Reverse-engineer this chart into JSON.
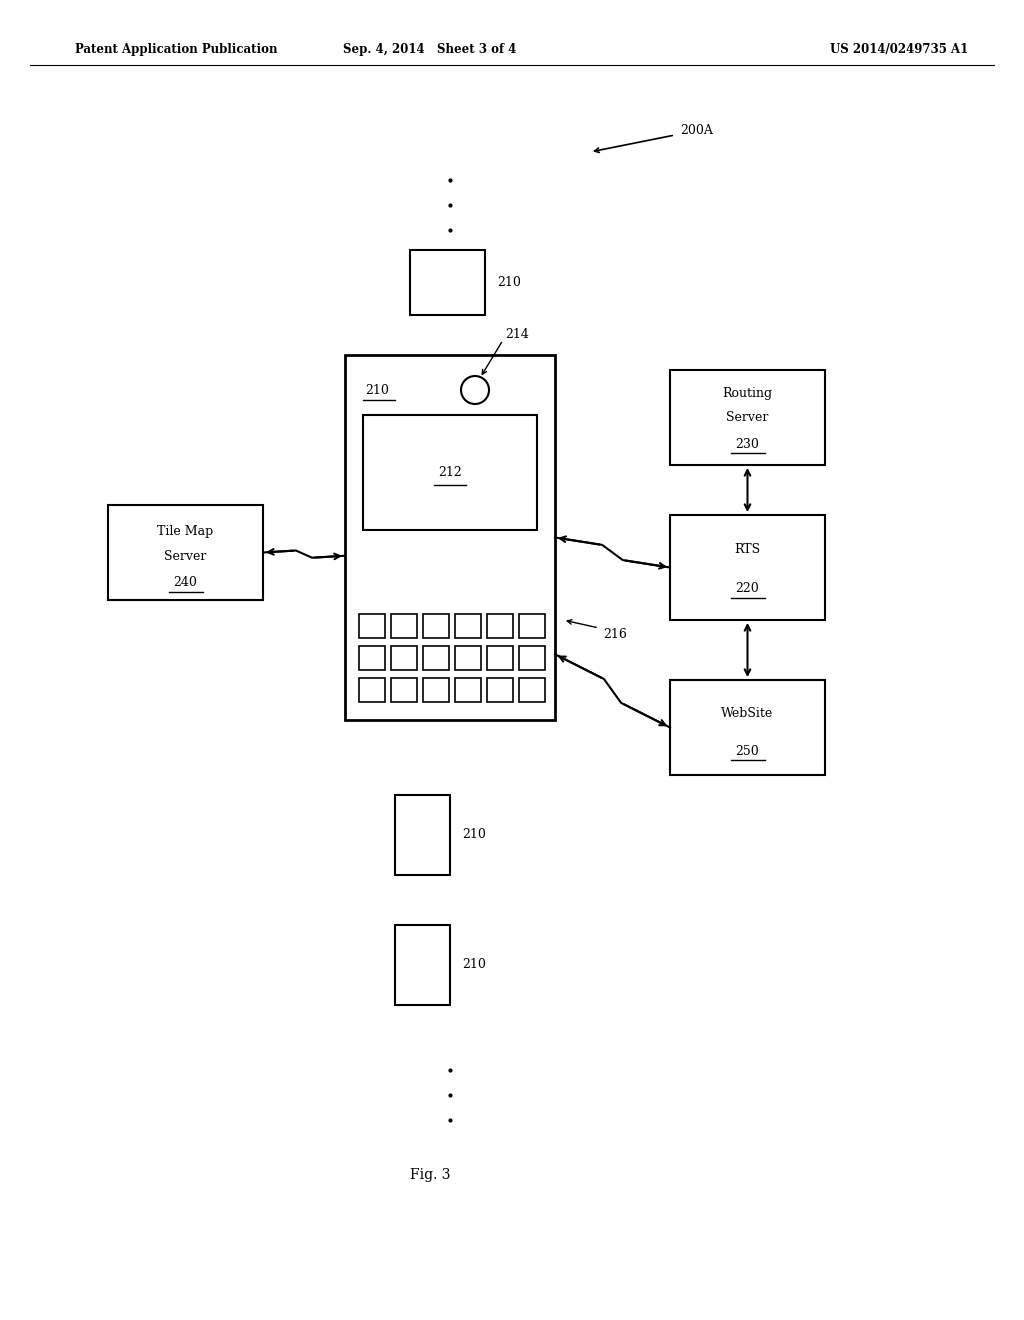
{
  "bg_color": "#ffffff",
  "header_left": "Patent Application Publication",
  "header_mid": "Sep. 4, 2014   Sheet 3 of 4",
  "header_right": "US 2014/0249735 A1",
  "fig_label": "Fig. 3"
}
